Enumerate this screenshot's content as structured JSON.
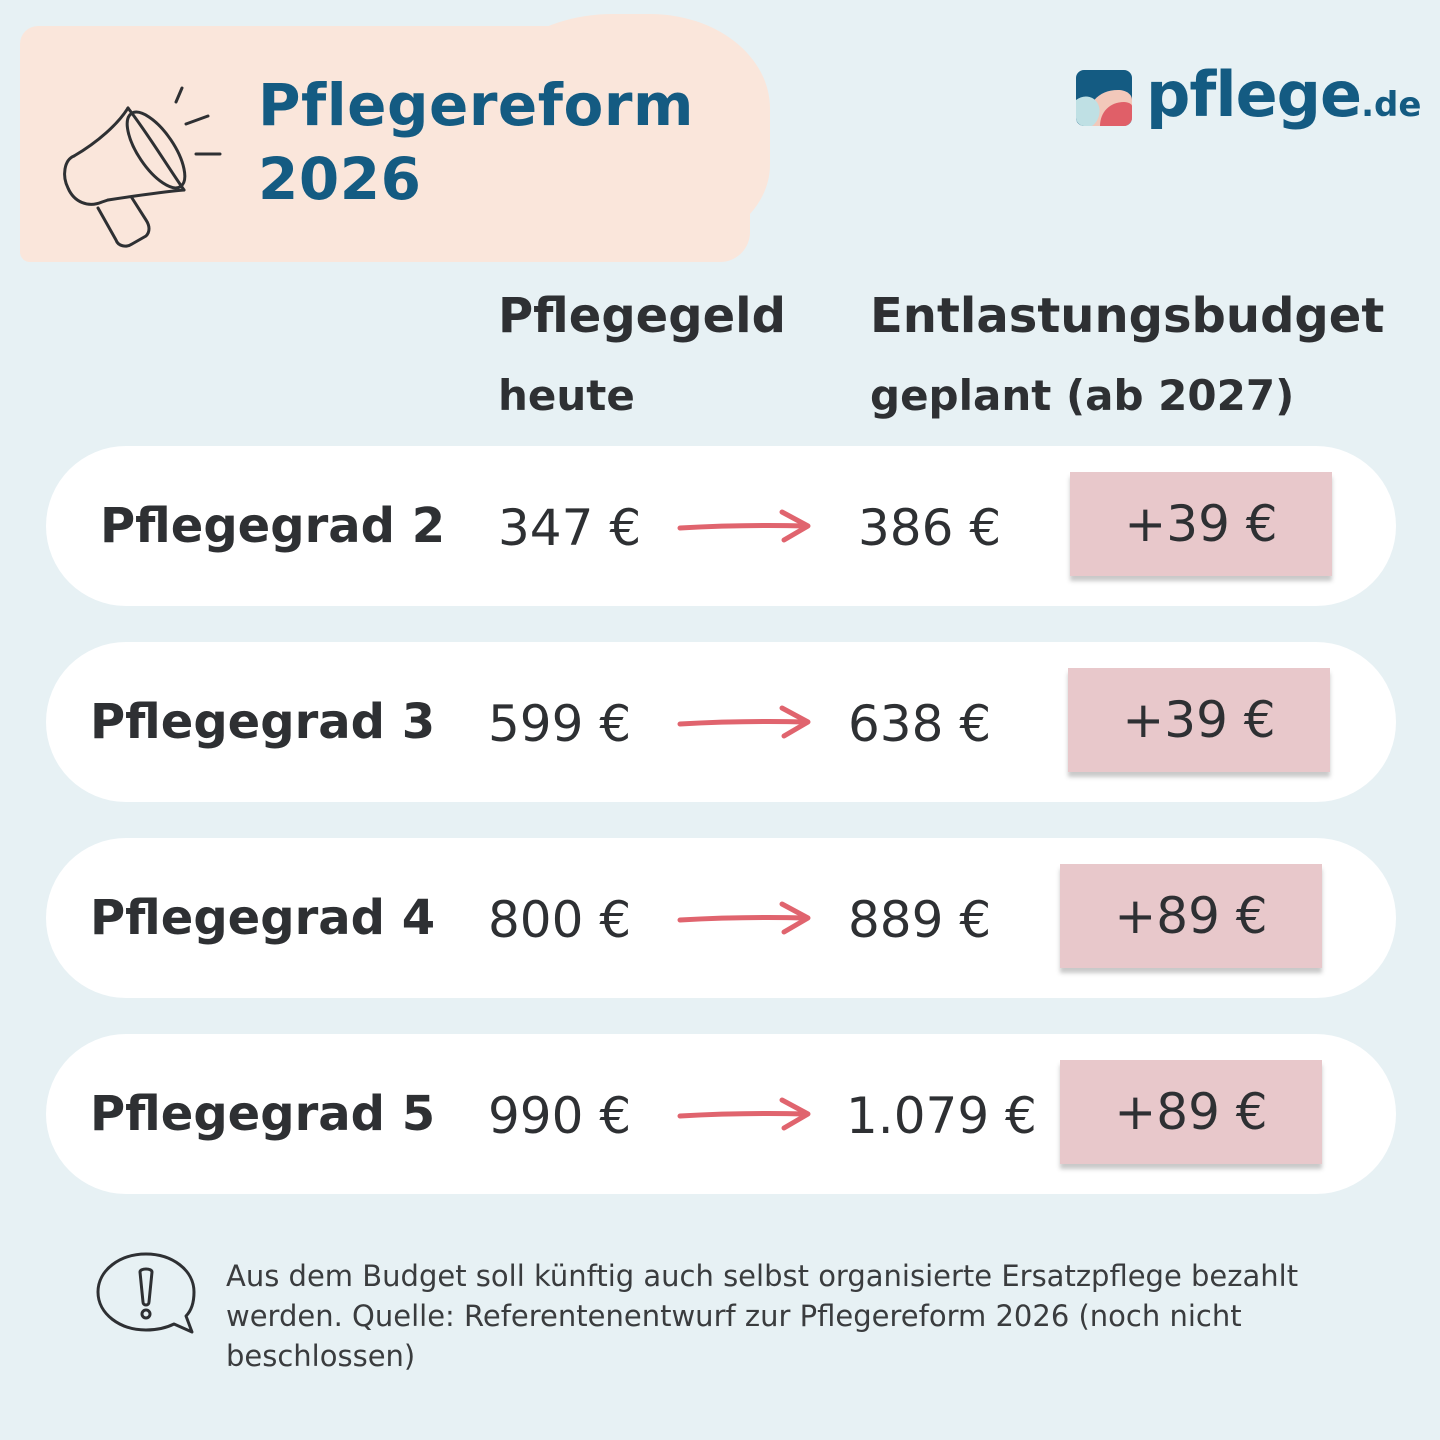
{
  "header": {
    "title_line1": "Pflegereform",
    "title_line2": "2026",
    "icon": "megaphone-icon"
  },
  "logo": {
    "name": "pflege",
    "tld": ".de"
  },
  "columns": {
    "current_main": "Pflegegeld",
    "current_sub": "heute",
    "planned_main": "Entlastungsbudget",
    "planned_sub": "geplant (ab 2027)"
  },
  "rows": [
    {
      "label": "Pflegegrad 2",
      "old": "347 €",
      "new": "386 €",
      "delta": "+39 €"
    },
    {
      "label": "Pflegegrad 3",
      "old": "599 €",
      "new": "638 €",
      "delta": "+39 €"
    },
    {
      "label": "Pflegegrad 4",
      "old": "800 €",
      "new": "889 €",
      "delta": "+89 €"
    },
    {
      "label": "Pflegegrad 5",
      "old": "990 €",
      "new": "1.079 €",
      "delta": "+89 €"
    }
  ],
  "notice": {
    "icon": "exclamation-speech-bubble-icon",
    "text": "Aus dem Budget soll künftig auch selbst organisierte Ersatzpflege bezahlt werden. Quelle: Referentenentwurf zur Pflegereform 2026 (noch nicht beschlossen)"
  },
  "colors": {
    "background": "#e7f1f4",
    "banner": "#fae6db",
    "brand_blue": "#145b82",
    "arrow": "#e0646e",
    "delta_box": "#e8c8cb",
    "row": "#ffffff"
  }
}
